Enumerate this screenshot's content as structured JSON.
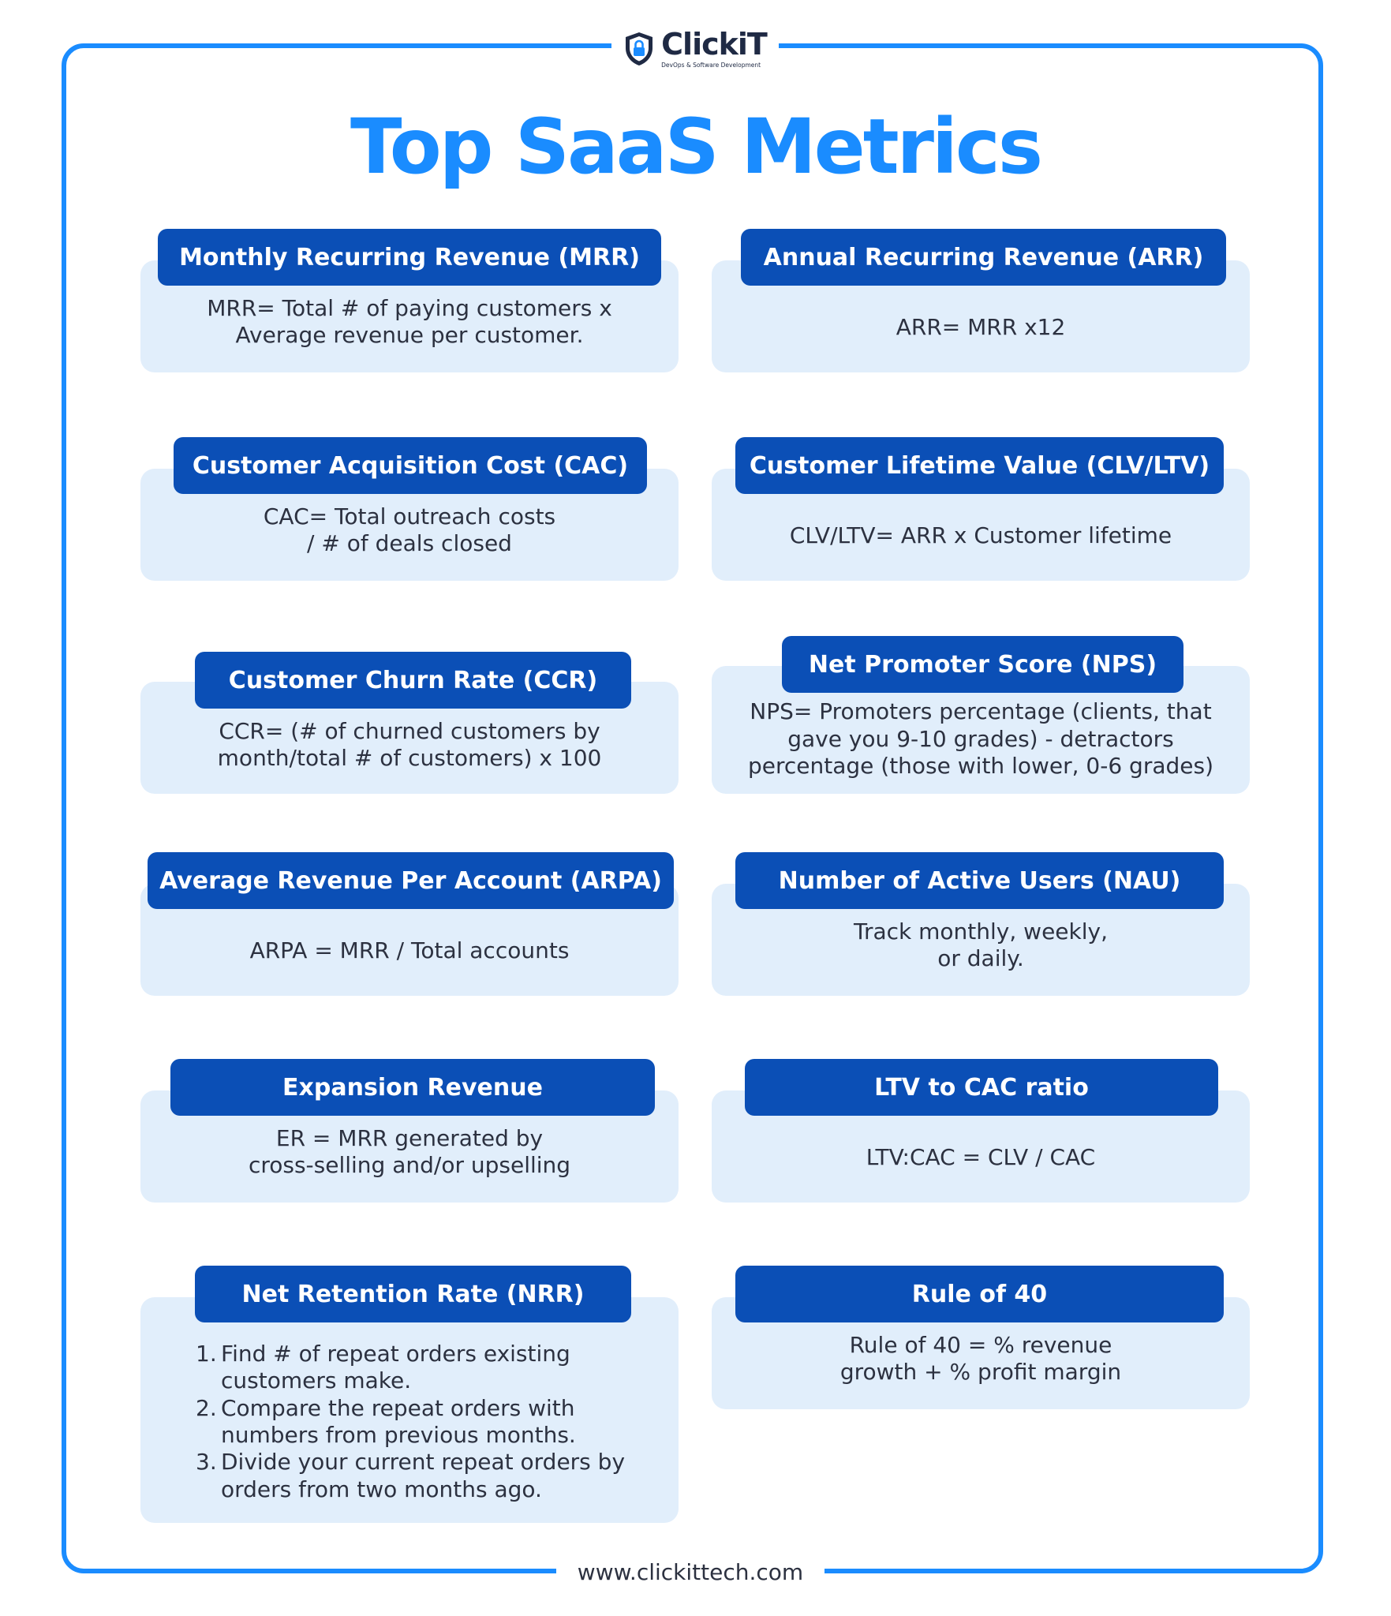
{
  "brand": {
    "name": "ClickiT",
    "tagline": "DevOps & Software Development",
    "website": "www.clickittech.com"
  },
  "title": "Top SaaS Metrics",
  "colors": {
    "accent": "#1a8cff",
    "pill": "#0b4fb6",
    "card": "#e1eefb",
    "text": "#2c3140"
  },
  "metrics": [
    {
      "heading": "Monthly Recurring Revenue (MRR)",
      "body": "MRR= Total # of paying customers x\nAverage revenue per customer."
    },
    {
      "heading": "Annual Recurring Revenue (ARR)",
      "body": "ARR= MRR x12"
    },
    {
      "heading": "Customer Acquisition Cost (CAC)",
      "body": "CAC= Total outreach costs\n/ # of deals closed"
    },
    {
      "heading": "Customer Lifetime Value (CLV/LTV)",
      "body": "CLV/LTV= ARR x Customer lifetime"
    },
    {
      "heading": "Customer Churn Rate (CCR)",
      "body": "CCR= (# of churned customers by\nmonth/total # of customers) x 100"
    },
    {
      "heading": "Net Promoter Score (NPS)",
      "body": "NPS= Promoters percentage (clients, that\ngave you 9-10 grades) - detractors\npercentage (those with lower, 0-6 grades)"
    },
    {
      "heading": "Average Revenue Per Account (ARPA)",
      "body": "ARPA = MRR / Total accounts"
    },
    {
      "heading": "Number of Active Users (NAU)",
      "body": "Track monthly, weekly,\nor daily."
    },
    {
      "heading": "Expansion Revenue",
      "body": "ER = MRR generated by\ncross-selling and/or upselling"
    },
    {
      "heading": "LTV to CAC ratio",
      "body": "LTV:CAC = CLV / CAC"
    },
    {
      "heading": "Net Retention Rate (NRR)",
      "steps": [
        {
          "num": "1.",
          "text": "Find # of repeat orders existing\ncustomers make."
        },
        {
          "num": "2.",
          "text": "Compare the repeat orders with\nnumbers from previous months."
        },
        {
          "num": "3.",
          "text": "Divide your current repeat orders by\norders from two months ago."
        }
      ]
    },
    {
      "heading": "Rule of 40",
      "body": "Rule of 40 = % revenue\ngrowth + % profit margin"
    }
  ]
}
